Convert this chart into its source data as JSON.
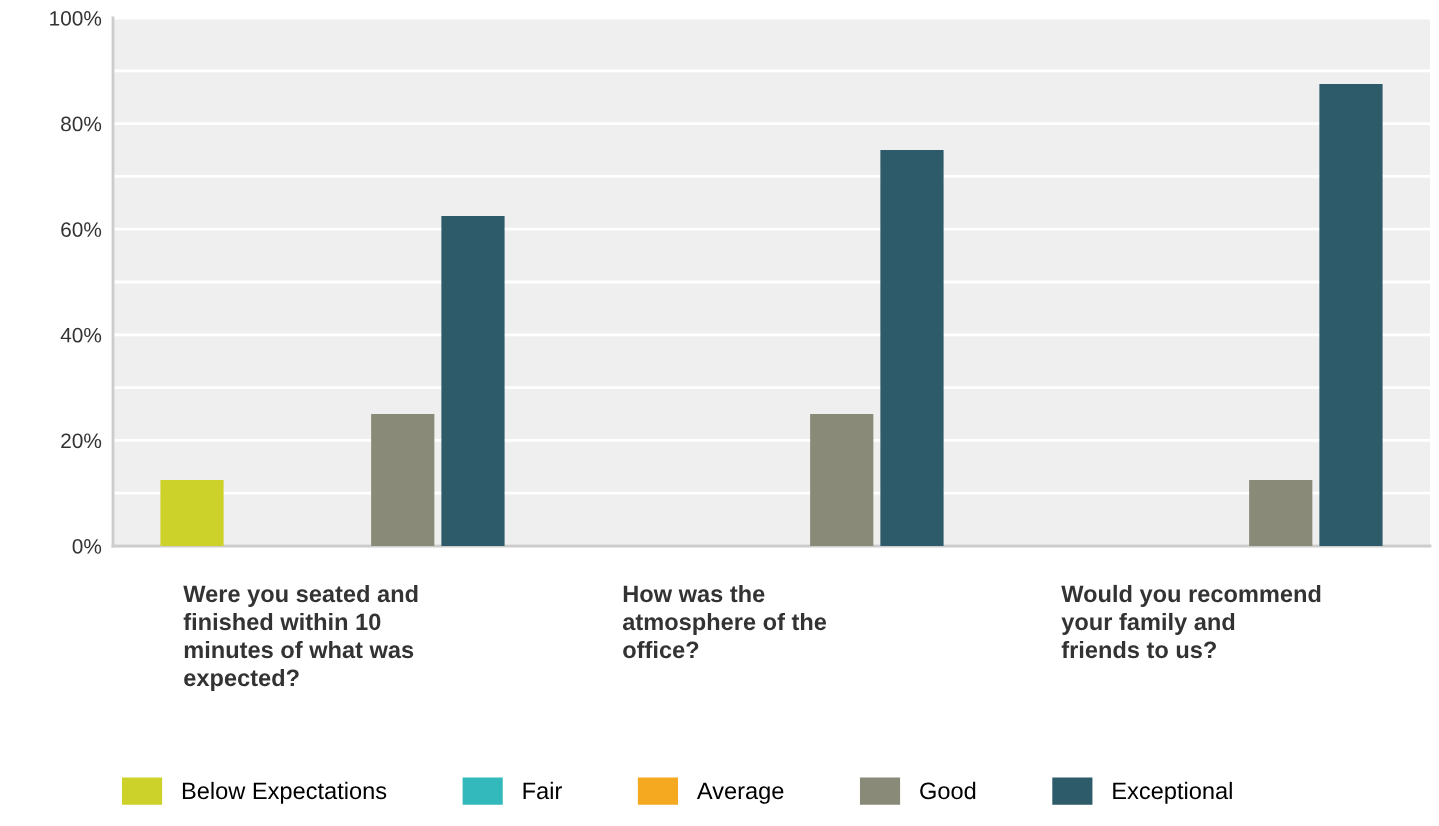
{
  "chart_data": {
    "type": "bar",
    "categories": [
      "Were you seated and\nfinished within 10\nminutes of what was\nexpected?",
      "How was the\natmosphere of the\noffice?",
      "Would you recommend\nyour family and\nfriends to us?"
    ],
    "series": [
      {
        "name": "Below Expectations",
        "color": "#cdd22a",
        "values": [
          12.5,
          0,
          0
        ]
      },
      {
        "name": "Fair",
        "color": "#33b9bb",
        "values": [
          0,
          0,
          0
        ]
      },
      {
        "name": "Average",
        "color": "#f4a920",
        "values": [
          0,
          0,
          0
        ]
      },
      {
        "name": "Good",
        "color": "#8a8a78",
        "values": [
          25,
          25,
          12.5
        ]
      },
      {
        "name": "Exceptional",
        "color": "#2e5b69",
        "values": [
          62.5,
          75,
          87.5
        ]
      }
    ],
    "ylim": [
      0,
      100
    ],
    "yticks": [
      {
        "value": 0,
        "label": "0%"
      },
      {
        "value": 10,
        "label": null
      },
      {
        "value": 20,
        "label": "20%"
      },
      {
        "value": 30,
        "label": null
      },
      {
        "value": 40,
        "label": "40%"
      },
      {
        "value": 50,
        "label": null
      },
      {
        "value": 60,
        "label": "60%"
      },
      {
        "value": 70,
        "label": null
      },
      {
        "value": 80,
        "label": "80%"
      },
      {
        "value": 90,
        "label": null
      },
      {
        "value": 100,
        "label": "100%"
      }
    ],
    "grid": "y",
    "legend": "bottom"
  }
}
